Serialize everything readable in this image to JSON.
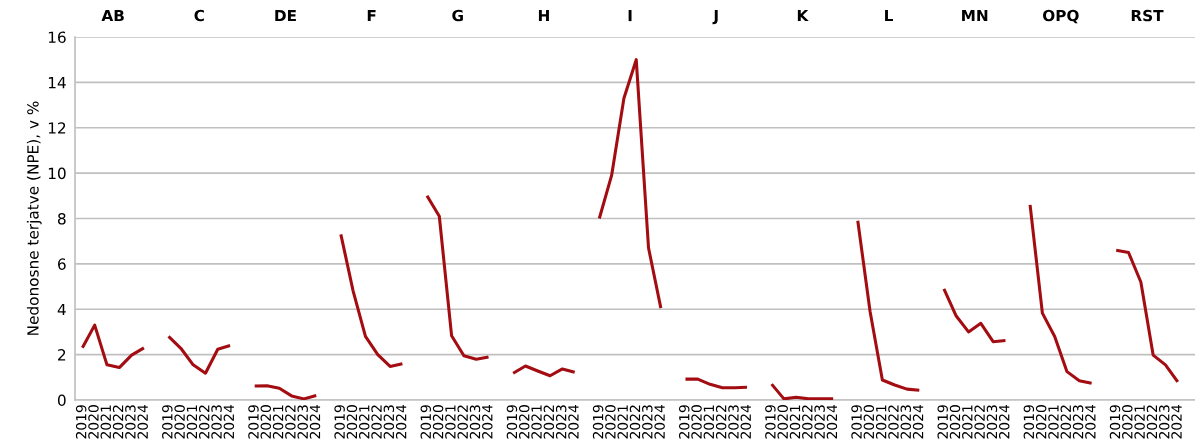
{
  "chart_data": {
    "type": "line",
    "ylabel": "Nedonosne terjatve (NPE), v %",
    "categories": [
      "2019",
      "2020",
      "2021",
      "2022",
      "2023",
      "2024",
      null,
      "2019",
      "2020",
      "2021",
      "2022",
      "2023",
      "2024",
      null,
      "2019",
      "2020",
      "2021",
      "2022",
      "2023",
      "2024",
      null,
      "2019",
      "2020",
      "2021",
      "2022",
      "2023",
      "2024",
      null,
      "2019",
      "2020",
      "2021",
      "2022",
      "2023",
      "2024",
      null,
      "2019",
      "2020",
      "2021",
      "2022",
      "2023",
      "2024",
      null,
      "2019",
      "2020",
      "2021",
      "2022",
      "2023",
      "2024",
      null,
      "2019",
      "2020",
      "2021",
      "2022",
      "2023",
      "2024",
      null,
      "2019",
      "2020",
      "2021",
      "2022",
      "2023",
      "2024",
      null,
      "2019",
      "2020",
      "2021",
      "2022",
      "2023",
      "2024",
      null,
      "2019",
      "2020",
      "2021",
      "2022",
      "2023",
      "2024",
      null,
      "2019",
      "2020",
      "2021",
      "2022",
      "2023",
      "2024",
      null,
      "2019",
      "2020",
      "2021",
      "2022",
      "2023",
      "2024",
      null
    ],
    "annotations": [
      "AB",
      "C",
      "DE",
      "F",
      "G",
      "H",
      "I",
      "J",
      "K",
      "L",
      "MN",
      "OPQ",
      "RST"
    ],
    "ylim": [
      0,
      16
    ],
    "yticks": [
      0,
      2,
      4,
      6,
      8,
      10,
      12,
      14,
      16
    ],
    "grid": "y",
    "series": [
      {
        "color": "#a30d12",
        "values": [
          2.3,
          3.3,
          1.55,
          1.43,
          1.98,
          2.3,
          null,
          null,
          null,
          null,
          null,
          null,
          null,
          null,
          null,
          null,
          null,
          null,
          null,
          null,
          null,
          null,
          null,
          null,
          null,
          null,
          null,
          null,
          null,
          null,
          null,
          null,
          null,
          null,
          null,
          null,
          null,
          null,
          null,
          null,
          null,
          null,
          null,
          null,
          null,
          null,
          null,
          null,
          null,
          null,
          null,
          null,
          null,
          null,
          null,
          null,
          null,
          null,
          null,
          null,
          null,
          null,
          null,
          null,
          null,
          null,
          null,
          null,
          null,
          null,
          null,
          null,
          null,
          null,
          null,
          null,
          null,
          null,
          null,
          null,
          null,
          null,
          null,
          null,
          null,
          null,
          null,
          null,
          null,
          null,
          null
        ]
      },
      {
        "color": "#a30d12",
        "values": [
          null,
          null,
          null,
          null,
          null,
          null,
          null,
          2.8,
          2.28,
          1.55,
          1.18,
          2.24,
          2.4,
          null,
          null,
          null,
          null,
          null,
          null,
          null,
          null,
          null,
          null,
          null,
          null,
          null,
          null,
          null,
          null,
          null,
          null,
          null,
          null,
          null,
          null,
          null,
          null,
          null,
          null,
          null,
          null,
          null,
          null,
          null,
          null,
          null,
          null,
          null,
          null,
          null,
          null,
          null,
          null,
          null,
          null,
          null,
          null,
          null,
          null,
          null,
          null,
          null,
          null,
          null,
          null,
          null,
          null,
          null,
          null,
          null,
          null,
          null,
          null,
          null,
          null,
          null,
          null,
          null,
          null,
          null,
          null,
          null,
          null,
          null,
          null,
          null,
          null,
          null,
          null,
          null,
          null
        ]
      },
      {
        "color": "#a30d12",
        "values": [
          null,
          null,
          null,
          null,
          null,
          null,
          null,
          null,
          null,
          null,
          null,
          null,
          null,
          null,
          0.62,
          0.63,
          0.52,
          0.18,
          0.05,
          0.2,
          null,
          null,
          null,
          null,
          null,
          null,
          null,
          null,
          null,
          null,
          null,
          null,
          null,
          null,
          null,
          null,
          null,
          null,
          null,
          null,
          null,
          null,
          null,
          null,
          null,
          null,
          null,
          null,
          null,
          null,
          null,
          null,
          null,
          null,
          null,
          null,
          null,
          null,
          null,
          null,
          null,
          null,
          null,
          null,
          null,
          null,
          null,
          null,
          null,
          null,
          null,
          null,
          null,
          null,
          null,
          null,
          null,
          null,
          null,
          null,
          null,
          null,
          null,
          null,
          null,
          null,
          null,
          null,
          null,
          null,
          null
        ]
      },
      {
        "color": "#a30d12",
        "values": [
          null,
          null,
          null,
          null,
          null,
          null,
          null,
          null,
          null,
          null,
          null,
          null,
          null,
          null,
          null,
          null,
          null,
          null,
          null,
          null,
          null,
          7.3,
          4.8,
          2.8,
          2.0,
          1.48,
          1.6,
          null,
          null,
          null,
          null,
          null,
          null,
          null,
          null,
          null,
          null,
          null,
          null,
          null,
          null,
          null,
          null,
          null,
          null,
          null,
          null,
          null,
          null,
          null,
          null,
          null,
          null,
          null,
          null,
          null,
          null,
          null,
          null,
          null,
          null,
          null,
          null,
          null,
          null,
          null,
          null,
          null,
          null,
          null,
          null,
          null,
          null,
          null,
          null,
          null,
          null,
          null,
          null,
          null,
          null,
          null,
          null,
          null,
          null,
          null,
          null,
          null,
          null,
          null,
          null
        ]
      },
      {
        "color": "#a30d12",
        "values": [
          null,
          null,
          null,
          null,
          null,
          null,
          null,
          null,
          null,
          null,
          null,
          null,
          null,
          null,
          null,
          null,
          null,
          null,
          null,
          null,
          null,
          null,
          null,
          null,
          null,
          null,
          null,
          null,
          9.0,
          8.1,
          2.83,
          1.95,
          1.8,
          1.9,
          null,
          null,
          null,
          null,
          null,
          null,
          null,
          null,
          null,
          null,
          null,
          null,
          null,
          null,
          null,
          null,
          null,
          null,
          null,
          null,
          null,
          null,
          null,
          null,
          null,
          null,
          null,
          null,
          null,
          null,
          null,
          null,
          null,
          null,
          null,
          null,
          null,
          null,
          null,
          null,
          null,
          null,
          null,
          null,
          null,
          null,
          null,
          null,
          null,
          null,
          null,
          null,
          null,
          null,
          null,
          null,
          null
        ]
      },
      {
        "color": "#a30d12",
        "values": [
          null,
          null,
          null,
          null,
          null,
          null,
          null,
          null,
          null,
          null,
          null,
          null,
          null,
          null,
          null,
          null,
          null,
          null,
          null,
          null,
          null,
          null,
          null,
          null,
          null,
          null,
          null,
          null,
          null,
          null,
          null,
          null,
          null,
          null,
          null,
          1.18,
          1.5,
          1.28,
          1.07,
          1.37,
          1.22,
          null,
          null,
          null,
          null,
          null,
          null,
          null,
          null,
          null,
          null,
          null,
          null,
          null,
          null,
          null,
          null,
          null,
          null,
          null,
          null,
          null,
          null,
          null,
          null,
          null,
          null,
          null,
          null,
          null,
          null,
          null,
          null,
          null,
          null,
          null,
          null,
          null,
          null,
          null,
          null,
          null,
          null,
          null,
          null,
          null,
          null,
          null,
          null,
          null,
          null
        ]
      },
      {
        "color": "#a30d12",
        "values": [
          null,
          null,
          null,
          null,
          null,
          null,
          null,
          null,
          null,
          null,
          null,
          null,
          null,
          null,
          null,
          null,
          null,
          null,
          null,
          null,
          null,
          null,
          null,
          null,
          null,
          null,
          null,
          null,
          null,
          null,
          null,
          null,
          null,
          null,
          null,
          null,
          null,
          null,
          null,
          null,
          null,
          null,
          8.0,
          9.9,
          13.3,
          15.0,
          6.7,
          4.05,
          null,
          null,
          null,
          null,
          null,
          null,
          null,
          null,
          null,
          null,
          null,
          null,
          null,
          null,
          null,
          null,
          null,
          null,
          null,
          null,
          null,
          null,
          null,
          null,
          null,
          null,
          null,
          null,
          null,
          null,
          null,
          null,
          null,
          null,
          null,
          null,
          null,
          null,
          null,
          null,
          null,
          null,
          null
        ]
      },
      {
        "color": "#a30d12",
        "values": [
          null,
          null,
          null,
          null,
          null,
          null,
          null,
          null,
          null,
          null,
          null,
          null,
          null,
          null,
          null,
          null,
          null,
          null,
          null,
          null,
          null,
          null,
          null,
          null,
          null,
          null,
          null,
          null,
          null,
          null,
          null,
          null,
          null,
          null,
          null,
          null,
          null,
          null,
          null,
          null,
          null,
          null,
          null,
          null,
          null,
          null,
          null,
          null,
          null,
          0.92,
          0.92,
          0.69,
          0.54,
          0.54,
          0.56,
          null,
          null,
          null,
          null,
          null,
          null,
          null,
          null,
          null,
          null,
          null,
          null,
          null,
          null,
          null,
          null,
          null,
          null,
          null,
          null,
          null,
          null,
          null,
          null,
          null,
          null,
          null,
          null,
          null,
          null,
          null,
          null,
          null,
          null,
          null,
          null
        ]
      },
      {
        "color": "#a30d12",
        "values": [
          null,
          null,
          null,
          null,
          null,
          null,
          null,
          null,
          null,
          null,
          null,
          null,
          null,
          null,
          null,
          null,
          null,
          null,
          null,
          null,
          null,
          null,
          null,
          null,
          null,
          null,
          null,
          null,
          null,
          null,
          null,
          null,
          null,
          null,
          null,
          null,
          null,
          null,
          null,
          null,
          null,
          null,
          null,
          null,
          null,
          null,
          null,
          null,
          null,
          null,
          null,
          null,
          null,
          null,
          null,
          null,
          0.7,
          0.05,
          0.12,
          0.05,
          0.05,
          0.05,
          null,
          null,
          null,
          null,
          null,
          null,
          null,
          null,
          null,
          null,
          null,
          null,
          null,
          null,
          null,
          null,
          null,
          null,
          null,
          null,
          null,
          null,
          null,
          null,
          null,
          null,
          null,
          null,
          null
        ]
      },
      {
        "color": "#a30d12",
        "values": [
          null,
          null,
          null,
          null,
          null,
          null,
          null,
          null,
          null,
          null,
          null,
          null,
          null,
          null,
          null,
          null,
          null,
          null,
          null,
          null,
          null,
          null,
          null,
          null,
          null,
          null,
          null,
          null,
          null,
          null,
          null,
          null,
          null,
          null,
          null,
          null,
          null,
          null,
          null,
          null,
          null,
          null,
          null,
          null,
          null,
          null,
          null,
          null,
          null,
          null,
          null,
          null,
          null,
          null,
          null,
          null,
          null,
          null,
          null,
          null,
          null,
          null,
          null,
          7.9,
          3.9,
          0.88,
          0.66,
          0.48,
          0.43,
          null,
          null,
          null,
          null,
          null,
          null,
          null,
          null,
          null,
          null,
          null,
          null,
          null,
          null,
          null,
          null,
          null,
          null,
          null,
          null,
          null,
          null
        ]
      },
      {
        "color": "#a30d12",
        "values": [
          null,
          null,
          null,
          null,
          null,
          null,
          null,
          null,
          null,
          null,
          null,
          null,
          null,
          null,
          null,
          null,
          null,
          null,
          null,
          null,
          null,
          null,
          null,
          null,
          null,
          null,
          null,
          null,
          null,
          null,
          null,
          null,
          null,
          null,
          null,
          null,
          null,
          null,
          null,
          null,
          null,
          null,
          null,
          null,
          null,
          null,
          null,
          null,
          null,
          null,
          null,
          null,
          null,
          null,
          null,
          null,
          null,
          null,
          null,
          null,
          null,
          null,
          null,
          null,
          null,
          null,
          null,
          null,
          null,
          null,
          4.9,
          3.7,
          3.0,
          3.38,
          2.57,
          2.62,
          null,
          null,
          null,
          null,
          null,
          null,
          null,
          null,
          null,
          null,
          null,
          null,
          null,
          null,
          null
        ]
      },
      {
        "color": "#a30d12",
        "values": [
          null,
          null,
          null,
          null,
          null,
          null,
          null,
          null,
          null,
          null,
          null,
          null,
          null,
          null,
          null,
          null,
          null,
          null,
          null,
          null,
          null,
          null,
          null,
          null,
          null,
          null,
          null,
          null,
          null,
          null,
          null,
          null,
          null,
          null,
          null,
          null,
          null,
          null,
          null,
          null,
          null,
          null,
          null,
          null,
          null,
          null,
          null,
          null,
          null,
          null,
          null,
          null,
          null,
          null,
          null,
          null,
          null,
          null,
          null,
          null,
          null,
          null,
          null,
          null,
          null,
          null,
          null,
          null,
          null,
          null,
          null,
          null,
          null,
          null,
          null,
          null,
          null,
          8.6,
          3.83,
          2.8,
          1.25,
          0.85,
          0.74,
          null,
          null,
          null,
          null,
          null,
          null,
          null,
          null
        ]
      },
      {
        "color": "#a30d12",
        "values": [
          null,
          null,
          null,
          null,
          null,
          null,
          null,
          null,
          null,
          null,
          null,
          null,
          null,
          null,
          null,
          null,
          null,
          null,
          null,
          null,
          null,
          null,
          null,
          null,
          null,
          null,
          null,
          null,
          null,
          null,
          null,
          null,
          null,
          null,
          null,
          null,
          null,
          null,
          null,
          null,
          null,
          null,
          null,
          null,
          null,
          null,
          null,
          null,
          null,
          null,
          null,
          null,
          null,
          null,
          null,
          null,
          null,
          null,
          null,
          null,
          null,
          null,
          null,
          null,
          null,
          null,
          null,
          null,
          null,
          null,
          null,
          null,
          null,
          null,
          null,
          null,
          null,
          null,
          null,
          null,
          null,
          null,
          null,
          null,
          6.6,
          6.5,
          5.2,
          1.98,
          1.55,
          0.8,
          null
        ]
      }
    ]
  }
}
